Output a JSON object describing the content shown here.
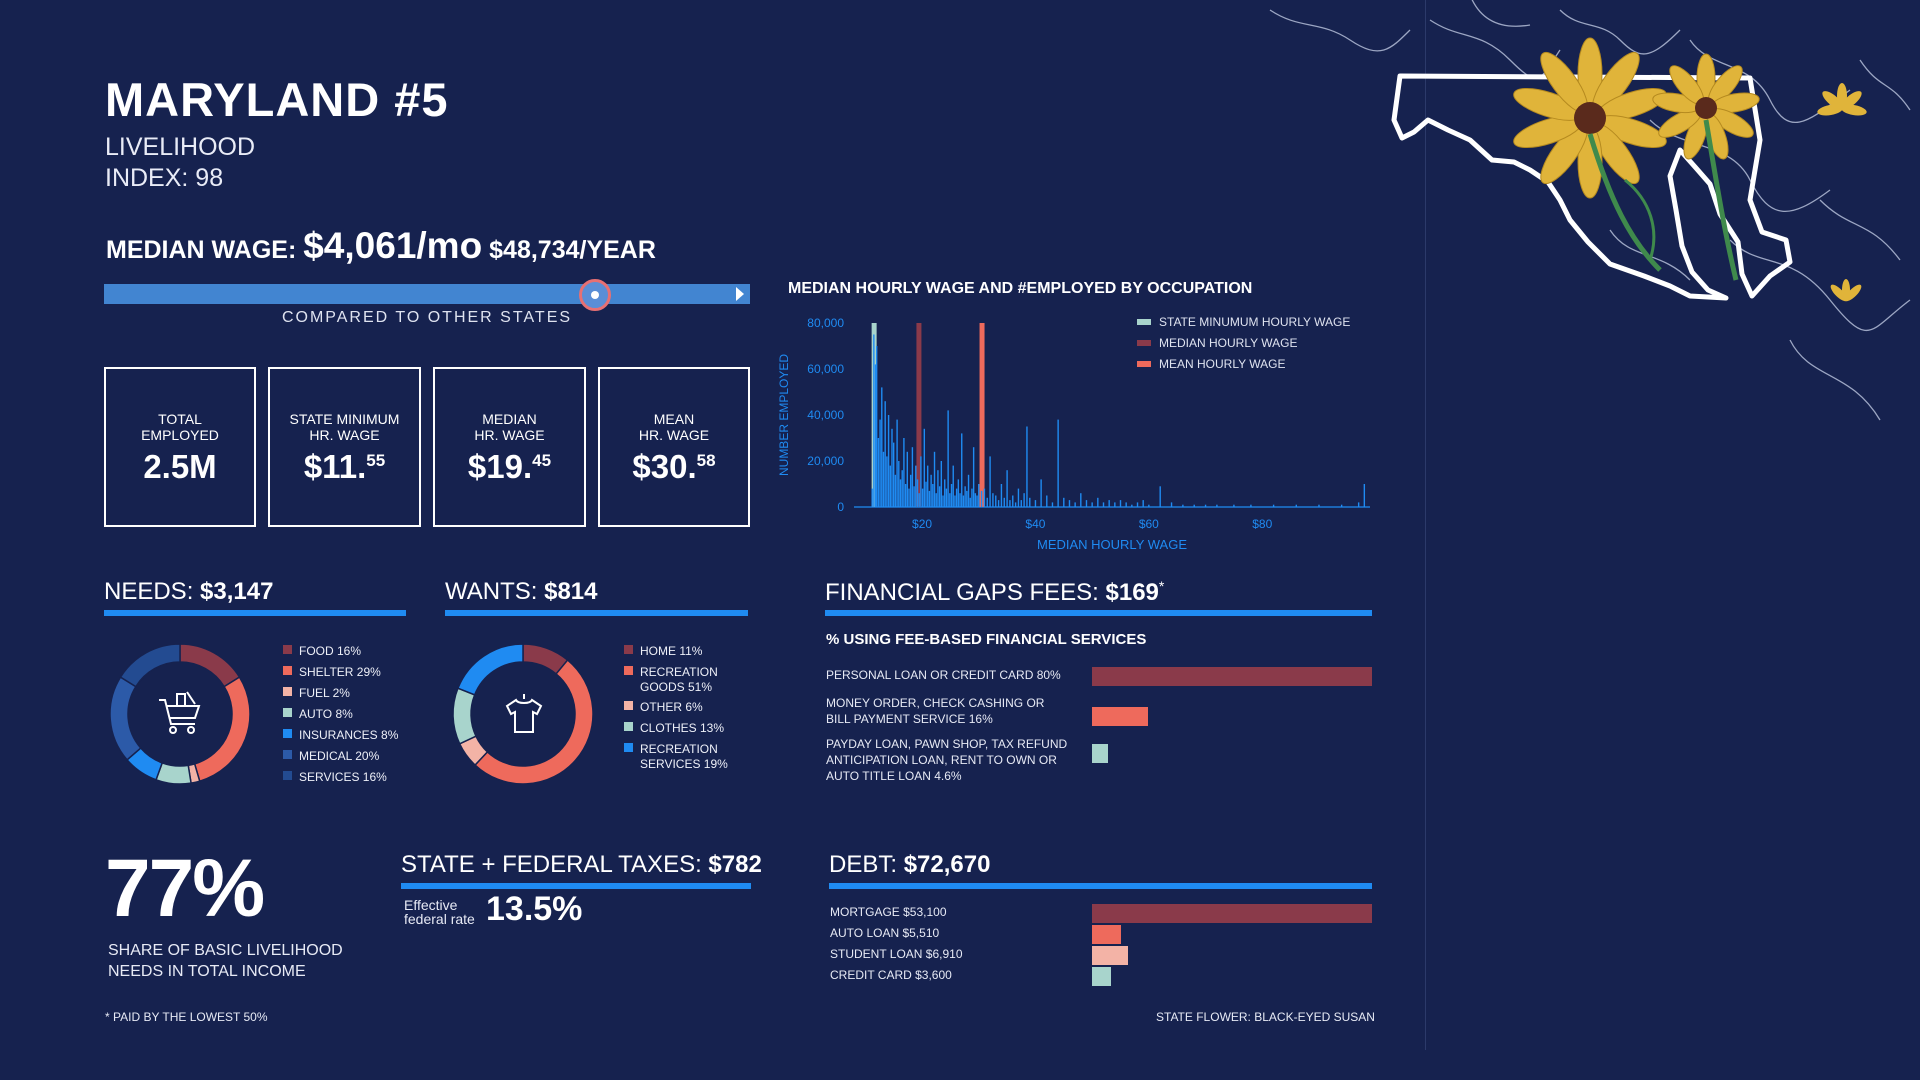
{
  "header": {
    "title": "MARYLAND #5",
    "livelihood_label": "LIVELIHOOD",
    "index_label": "INDEX: 98"
  },
  "median_wage": {
    "label": "MEDIAN WAGE:",
    "monthly": "$4,061/mo",
    "yearly": "$48,734/YEAR",
    "compared_label": "COMPARED TO OTHER STATES",
    "position": 0.76
  },
  "stats": [
    {
      "label_line1": "TOTAL",
      "label_line2": "EMPLOYED",
      "value_main": "2.5M",
      "value_sup": ""
    },
    {
      "label_line1": "STATE MINIMUM",
      "label_line2": "HR. WAGE",
      "value_main": "$11.",
      "value_sup": "55"
    },
    {
      "label_line1": "MEDIAN",
      "label_line2": "HR. WAGE",
      "value_main": "$19.",
      "value_sup": "45"
    },
    {
      "label_line1": "MEAN",
      "label_line2": "HR. WAGE",
      "value_main": "$30.",
      "value_sup": "58"
    }
  ],
  "needs": {
    "label": "NEEDS:",
    "amount": "$3,147",
    "legend": [
      {
        "label": "FOOD 16%",
        "color": "#8a3a4a"
      },
      {
        "label": "SHELTER 29%",
        "color": "#ee6a5c"
      },
      {
        "label": "FUEL 2%",
        "color": "#f3b3a6"
      },
      {
        "label": "AUTO 8%",
        "color": "#a8d4cc"
      },
      {
        "label": "INSURANCES 8%",
        "color": "#1f8bf2"
      },
      {
        "label": "MEDICAL 20%",
        "color": "#2c5aa8"
      },
      {
        "label": "SERVICES 16%",
        "color": "#234b91"
      }
    ],
    "slices": [
      16,
      29,
      2,
      8,
      8,
      20,
      16
    ],
    "icon": "shopping-cart-icon"
  },
  "wants": {
    "label": "WANTS:",
    "amount": "$814",
    "legend": [
      {
        "label": "HOME 11%",
        "color": "#8a3a4a"
      },
      {
        "label": "RECREATION",
        "label2": "GOODS 51%",
        "color": "#ee6a5c"
      },
      {
        "label": "OTHER 6%",
        "color": "#f3b3a6"
      },
      {
        "label": "CLOTHES 13%",
        "color": "#a8d4cc"
      },
      {
        "label": "RECREATION",
        "label2": "SERVICES 19%",
        "color": "#1f8bf2"
      }
    ],
    "slices": [
      11,
      51,
      6,
      13,
      19
    ],
    "icon": "tshirt-icon"
  },
  "fees": {
    "label": "FINANCIAL GAPS FEES:",
    "amount": "$169",
    "asterisk": "*",
    "subtitle": "% USING FEE-BASED FINANCIAL SERVICES",
    "items": [
      {
        "line1": "PERSONAL LOAN OR CREDIT CARD 80%",
        "line2": "",
        "line3": "",
        "value": 80,
        "color": "#8a3a4a"
      },
      {
        "line1": "MONEY ORDER, CHECK CASHING OR",
        "line2": "BILL PAYMENT SERVICE 16%",
        "line3": "",
        "value": 16,
        "color": "#ee6a5c"
      },
      {
        "line1": "PAYDAY LOAN, PAWN SHOP, TAX REFUND",
        "line2": "ANTICIPATION LOAN, RENT TO OWN OR",
        "line3": "AUTO TITLE LOAN 4.6%",
        "value": 4.6,
        "color": "#a8d4cc"
      }
    ]
  },
  "taxes": {
    "label": "STATE + FEDERAL TAXES:",
    "amount": "$782",
    "eff_line1": "Effective",
    "eff_line2": "federal rate",
    "rate": "13.5%"
  },
  "debt": {
    "label": "DEBT:",
    "amount": "$72,670",
    "items": [
      {
        "label": "MORTGAGE $53,100",
        "value": 53100,
        "color": "#8a3a4a"
      },
      {
        "label": "AUTO LOAN $5,510",
        "value": 5510,
        "color": "#ee6a5c"
      },
      {
        "label": "STUDENT LOAN $6,910",
        "value": 6910,
        "color": "#f3b3a6"
      },
      {
        "label": "CREDIT CARD $3,600",
        "value": 3600,
        "color": "#a8d4cc"
      }
    ]
  },
  "share": {
    "value": "77%",
    "line1": "SHARE OF BASIC LIVELIHOOD",
    "line2": "NEEDS IN TOTAL INCOME"
  },
  "footer": {
    "note": "* PAID BY THE LOWEST 50%",
    "flower": "STATE FLOWER: BLACK-EYED SUSAN"
  },
  "chart_data": {
    "type": "bar",
    "title": "MEDIAN HOURLY WAGE AND #EMPLOYED BY OCCUPATION",
    "xlabel": "MEDIAN HOURLY WAGE",
    "ylabel": "NUMBER EMPLOYED",
    "xlim": [
      8,
      99
    ],
    "ylim": [
      0,
      80000
    ],
    "x_ticks": [
      {
        "value": 20,
        "label": "$20"
      },
      {
        "value": 40,
        "label": "$40"
      },
      {
        "value": 60,
        "label": "$60"
      },
      {
        "value": 80,
        "label": "$80"
      }
    ],
    "y_ticks": [
      {
        "value": 0,
        "label": "0"
      },
      {
        "value": 20000,
        "label": "20,000"
      },
      {
        "value": 40000,
        "label": "40,000"
      },
      {
        "value": 60000,
        "label": "60,000"
      },
      {
        "value": 80000,
        "label": "80,000"
      }
    ],
    "reference_lines": [
      {
        "name": "STATE MINUMUM HOURLY WAGE",
        "x": 11.55,
        "color": "#a8d4cc"
      },
      {
        "name": "MEDIAN HOURLY WAGE",
        "x": 19.45,
        "color": "#8a3a4a"
      },
      {
        "name": "MEAN HOURLY WAGE",
        "x": 30.58,
        "color": "#ee6a5c"
      }
    ],
    "series_color": "#1f8bf2",
    "x": [
      11.2,
      11.5,
      11.8,
      12.0,
      12.3,
      12.6,
      12.9,
      13.2,
      13.5,
      13.8,
      14.1,
      14.4,
      14.7,
      15.0,
      15.3,
      15.6,
      15.9,
      16.2,
      16.5,
      16.8,
      17.1,
      17.4,
      17.7,
      18.0,
      18.3,
      18.6,
      18.9,
      19.2,
      19.5,
      19.8,
      20.1,
      20.4,
      20.7,
      21.0,
      21.3,
      21.6,
      21.9,
      22.2,
      22.5,
      22.8,
      23.1,
      23.4,
      23.7,
      24.0,
      24.3,
      24.6,
      24.9,
      25.2,
      25.5,
      25.8,
      26.1,
      26.4,
      26.7,
      27.0,
      27.3,
      27.6,
      27.9,
      28.2,
      28.5,
      28.8,
      29.1,
      29.4,
      29.7,
      30.0,
      30.5,
      31.0,
      31.5,
      32.0,
      32.5,
      33.0,
      33.5,
      34.0,
      34.5,
      35.0,
      35.5,
      36.0,
      36.5,
      37.0,
      37.5,
      38.0,
      38.5,
      39.0,
      40.0,
      41.0,
      42.0,
      43.0,
      44.0,
      45.0,
      46.0,
      47.0,
      48.0,
      49.0,
      50.0,
      51.0,
      52.0,
      53.0,
      54.0,
      55.0,
      56.0,
      57.0,
      58.0,
      59.0,
      60.0,
      62.0,
      64.0,
      66.0,
      68.0,
      70.0,
      72.0,
      75.0,
      78.0,
      82.0,
      86.0,
      90.0,
      94.0,
      97.0,
      98.0
    ],
    "values": [
      8000,
      75000,
      62000,
      70000,
      30000,
      38000,
      52000,
      24000,
      46000,
      22000,
      40000,
      18000,
      34000,
      28000,
      14000,
      38000,
      20000,
      12000,
      16000,
      30000,
      10000,
      24000,
      8000,
      14000,
      26000,
      9000,
      18000,
      12000,
      6000,
      22000,
      8000,
      34000,
      11000,
      18000,
      7000,
      14000,
      10000,
      24000,
      6000,
      16000,
      9000,
      20000,
      5000,
      12000,
      8000,
      42000,
      6000,
      10000,
      18000,
      5000,
      8000,
      12000,
      6000,
      32000,
      5000,
      9000,
      7000,
      14000,
      4000,
      8000,
      26000,
      6000,
      5000,
      10000,
      7000,
      8000,
      4000,
      22000,
      6000,
      5000,
      3000,
      10000,
      4000,
      16000,
      3000,
      5000,
      2000,
      8000,
      3000,
      6000,
      35000,
      4000,
      3000,
      12000,
      5000,
      2000,
      38000,
      4000,
      3000,
      2000,
      6000,
      3000,
      2000,
      4000,
      2000,
      3000,
      2000,
      3000,
      2000,
      1000,
      2000,
      3000,
      1000,
      9000,
      2000,
      1000,
      1000,
      1000,
      1000,
      1000,
      1000,
      1000,
      1000,
      1000,
      1000,
      2000,
      10000
    ]
  }
}
